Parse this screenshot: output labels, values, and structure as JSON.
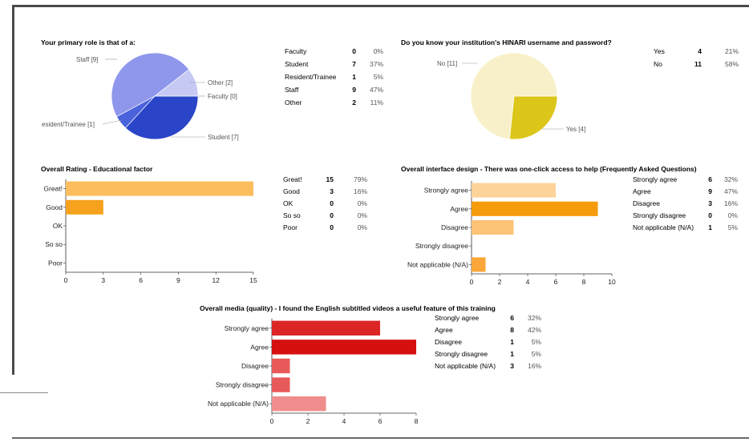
{
  "chart_data": [
    {
      "type": "pie",
      "title": "Your primary role is that of a:",
      "categories": [
        "Faculty",
        "Student",
        "Resident/Trainee",
        "Staff",
        "Other"
      ],
      "values": [
        0,
        7,
        1,
        9,
        2
      ],
      "percents": [
        "0%",
        "37%",
        "5%",
        "47%",
        "11%"
      ],
      "slice_labels": [
        "Faculty [0]",
        "Student [7]",
        "esident/Trainee [1]",
        "Staff [9]",
        "Other [2]"
      ],
      "colors": [
        "#2a45c8",
        "#2a45c8",
        "#4a62dc",
        "#8f97ec",
        "#c6c9f4"
      ]
    },
    {
      "type": "pie",
      "title": "Do you know your institution's HINARI username and password?",
      "categories": [
        "Yes",
        "No"
      ],
      "values": [
        4,
        11
      ],
      "percents": [
        "21%",
        "58%"
      ],
      "slice_labels": [
        "Yes [4]",
        "No [11]"
      ],
      "colors": [
        "#dcc61a",
        "#f8f0c8"
      ]
    },
    {
      "type": "bar",
      "orientation": "horizontal",
      "title": "Overall Rating - Educational factor",
      "categories": [
        "Great!",
        "Good",
        "OK",
        "So so",
        "Poor"
      ],
      "values": [
        15,
        3,
        0,
        0,
        0
      ],
      "percents": [
        "79%",
        "16%",
        "0%",
        "0%",
        "0%"
      ],
      "xlim": [
        0,
        15
      ],
      "ticks": [
        0,
        3,
        6,
        9,
        12,
        15
      ],
      "colors": [
        "#fbbd5e",
        "#f6a21c",
        "#f6a21c",
        "#f6a21c",
        "#f6a21c"
      ]
    },
    {
      "type": "bar",
      "orientation": "horizontal",
      "title": "Overall interface design - There was one-click access to help (Frequently Asked Questions)",
      "categories": [
        "Strongly agree",
        "Agree",
        "Disagree",
        "Strongly disagree",
        "Not applicable (N/A)"
      ],
      "values": [
        6,
        9,
        3,
        0,
        1
      ],
      "percents": [
        "32%",
        "47%",
        "16%",
        "0%",
        "5%"
      ],
      "xlim": [
        0,
        10
      ],
      "ticks": [
        0,
        2,
        4,
        6,
        8,
        10
      ],
      "colors": [
        "#fdd39a",
        "#f59b0c",
        "#fcc276",
        "#fcc276",
        "#fba638"
      ]
    },
    {
      "type": "bar",
      "orientation": "horizontal",
      "title": "Overall media (quality) - I found the English subtitled videos a useful feature of this training",
      "categories": [
        "Strongly agree",
        "Agree",
        "Disagree",
        "Strongly disagree",
        "Not applicable (N/A)"
      ],
      "values": [
        6,
        8,
        1,
        1,
        3
      ],
      "percents": [
        "32%",
        "42%",
        "5%",
        "5%",
        "16%"
      ],
      "xlim": [
        0,
        8
      ],
      "ticks": [
        0,
        2,
        4,
        6,
        8
      ],
      "colors": [
        "#dc2626",
        "#d60f0f",
        "#e85a5a",
        "#e85a5a",
        "#ef8d8d"
      ]
    }
  ]
}
